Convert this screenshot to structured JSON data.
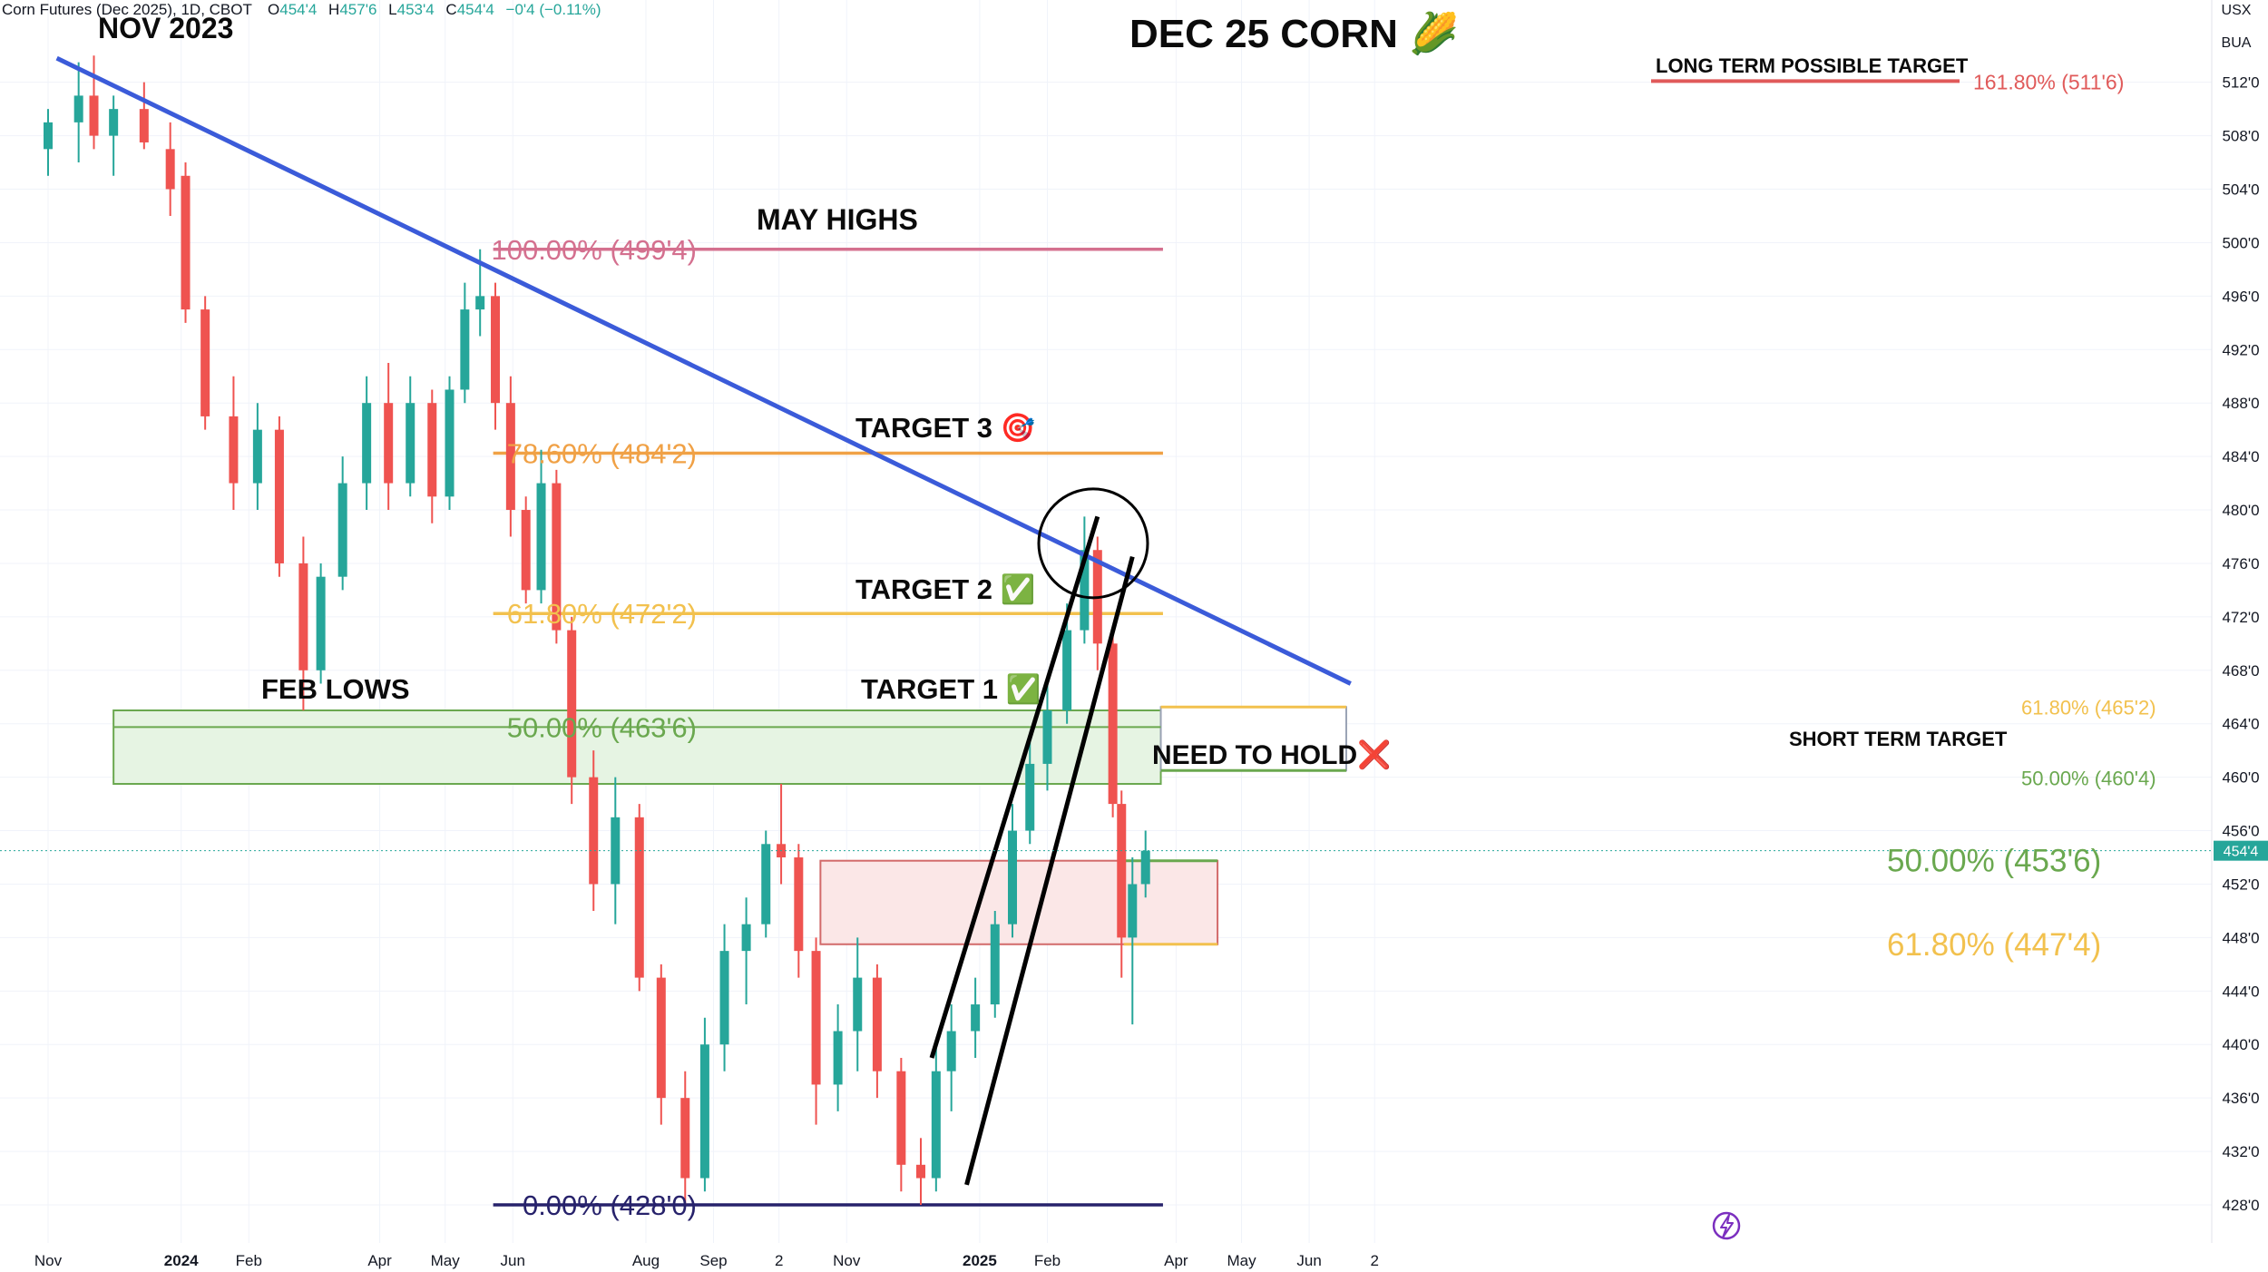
{
  "header": {
    "symbol_info": "Corn Futures (Dec 2025), 1D, CBOT",
    "o_label": "O",
    "o_value": "454'4",
    "h_label": "H",
    "h_value": "457'6",
    "l_label": "L",
    "l_value": "453'4",
    "c_label": "C",
    "c_value": "454'4",
    "change": "−0'4 (−0.11%)"
  },
  "currency": "USX",
  "unit": "BUA",
  "colors": {
    "up": "#26a69a",
    "down": "#ef5350",
    "trendline": "#3b5bd9",
    "fib100": "#d4708f",
    "fib786": "#f0a146",
    "fib618": "#f2c14e",
    "fib50": "#6aa84f",
    "fib0": "#27226b",
    "target_long": "#e05a5a"
  },
  "chart_data": {
    "type": "candlestick",
    "title": "DEC 25 CORN 🌽",
    "price_unit": "cents/bu (eighths notation)",
    "ylim": [
      425,
      518
    ],
    "y_ticks": [
      "512'0",
      "508'0",
      "504'0",
      "500'0",
      "496'0",
      "492'0",
      "488'0",
      "484'0",
      "480'0",
      "476'0",
      "472'0",
      "468'0",
      "464'0",
      "460'0",
      "456'0",
      "452'0",
      "448'0",
      "444'0",
      "440'0",
      "436'0",
      "432'0",
      "428'0"
    ],
    "last_price_label": "454'4",
    "x_ticks": [
      "Nov",
      "2024",
      "Feb",
      "Apr",
      "May",
      "Jun",
      "Aug",
      "Sep",
      "2",
      "Nov",
      "2025",
      "Feb",
      "Apr",
      "May",
      "Jun",
      "2"
    ],
    "bold_x_ticks": [
      "2024",
      "2025"
    ],
    "candles": [
      {
        "date": "2023-11-01",
        "open": 507,
        "high": 510,
        "low": 505,
        "close": 509
      },
      {
        "date": "2023-11-15",
        "open": 509,
        "high": 513.5,
        "low": 506,
        "close": 511
      },
      {
        "date": "2023-11-22",
        "open": 511,
        "high": 514,
        "low": 507,
        "close": 508
      },
      {
        "date": "2023-12-01",
        "open": 508,
        "high": 511,
        "low": 505,
        "close": 510
      },
      {
        "date": "2023-12-15",
        "open": 510,
        "high": 512,
        "low": 507,
        "close": 507.5
      },
      {
        "date": "2023-12-27",
        "open": 507,
        "high": 509,
        "low": 502,
        "close": 504
      },
      {
        "date": "2024-01-03",
        "open": 505,
        "high": 506,
        "low": 494,
        "close": 495
      },
      {
        "date": "2024-01-12",
        "open": 495,
        "high": 496,
        "low": 486,
        "close": 487
      },
      {
        "date": "2024-01-25",
        "open": 487,
        "high": 490,
        "low": 480,
        "close": 482
      },
      {
        "date": "2024-02-05",
        "open": 482,
        "high": 488,
        "low": 480,
        "close": 486
      },
      {
        "date": "2024-02-15",
        "open": 486,
        "high": 487,
        "low": 475,
        "close": 476
      },
      {
        "date": "2024-02-26",
        "open": 476,
        "high": 478,
        "low": 465,
        "close": 468
      },
      {
        "date": "2024-03-05",
        "open": 468,
        "high": 476,
        "low": 467,
        "close": 475
      },
      {
        "date": "2024-03-15",
        "open": 475,
        "high": 484,
        "low": 474,
        "close": 482
      },
      {
        "date": "2024-03-26",
        "open": 482,
        "high": 490,
        "low": 480,
        "close": 488
      },
      {
        "date": "2024-04-05",
        "open": 488,
        "high": 491,
        "low": 480,
        "close": 482
      },
      {
        "date": "2024-04-15",
        "open": 482,
        "high": 490,
        "low": 481,
        "close": 488
      },
      {
        "date": "2024-04-25",
        "open": 488,
        "high": 489,
        "low": 479,
        "close": 481
      },
      {
        "date": "2024-05-03",
        "open": 481,
        "high": 490,
        "low": 480,
        "close": 489
      },
      {
        "date": "2024-05-10",
        "open": 489,
        "high": 497,
        "low": 488,
        "close": 495
      },
      {
        "date": "2024-05-17",
        "open": 495,
        "high": 499.5,
        "low": 493,
        "close": 496
      },
      {
        "date": "2024-05-24",
        "open": 496,
        "high": 497,
        "low": 486,
        "close": 488
      },
      {
        "date": "2024-05-31",
        "open": 488,
        "high": 490,
        "low": 478,
        "close": 480
      },
      {
        "date": "2024-06-07",
        "open": 480,
        "high": 481,
        "low": 473,
        "close": 474
      },
      {
        "date": "2024-06-14",
        "open": 474,
        "high": 484.5,
        "low": 473,
        "close": 482
      },
      {
        "date": "2024-06-21",
        "open": 482,
        "high": 483,
        "low": 470,
        "close": 471
      },
      {
        "date": "2024-06-28",
        "open": 471,
        "high": 472,
        "low": 458,
        "close": 460
      },
      {
        "date": "2024-07-08",
        "open": 460,
        "high": 462,
        "low": 450,
        "close": 452
      },
      {
        "date": "2024-07-18",
        "open": 452,
        "high": 460,
        "low": 449,
        "close": 457
      },
      {
        "date": "2024-07-29",
        "open": 457,
        "high": 458,
        "low": 444,
        "close": 445
      },
      {
        "date": "2024-08-08",
        "open": 445,
        "high": 446,
        "low": 434,
        "close": 436
      },
      {
        "date": "2024-08-19",
        "open": 436,
        "high": 438,
        "low": 428,
        "close": 430
      },
      {
        "date": "2024-08-28",
        "open": 430,
        "high": 442,
        "low": 429,
        "close": 440
      },
      {
        "date": "2024-09-06",
        "open": 440,
        "high": 449,
        "low": 438,
        "close": 447
      },
      {
        "date": "2024-09-16",
        "open": 447,
        "high": 451,
        "low": 443,
        "close": 449
      },
      {
        "date": "2024-09-25",
        "open": 449,
        "high": 456,
        "low": 448,
        "close": 455
      },
      {
        "date": "2024-10-02",
        "open": 455,
        "high": 459.5,
        "low": 452,
        "close": 454
      },
      {
        "date": "2024-10-10",
        "open": 454,
        "high": 455,
        "low": 445,
        "close": 447
      },
      {
        "date": "2024-10-18",
        "open": 447,
        "high": 448,
        "low": 434,
        "close": 437
      },
      {
        "date": "2024-10-28",
        "open": 437,
        "high": 443,
        "low": 435,
        "close": 441
      },
      {
        "date": "2024-11-06",
        "open": 441,
        "high": 448,
        "low": 438,
        "close": 445
      },
      {
        "date": "2024-11-15",
        "open": 445,
        "high": 446,
        "low": 436,
        "close": 438
      },
      {
        "date": "2024-11-26",
        "open": 438,
        "high": 439,
        "low": 429,
        "close": 431
      },
      {
        "date": "2024-12-05",
        "open": 431,
        "high": 433,
        "low": 428,
        "close": 430
      },
      {
        "date": "2024-12-12",
        "open": 430,
        "high": 440,
        "low": 429,
        "close": 438
      },
      {
        "date": "2024-12-19",
        "open": 438,
        "high": 443,
        "low": 435,
        "close": 441
      },
      {
        "date": "2024-12-30",
        "open": 441,
        "high": 445,
        "low": 439,
        "close": 443
      },
      {
        "date": "2025-01-08",
        "open": 443,
        "high": 450,
        "low": 442,
        "close": 449
      },
      {
        "date": "2025-01-16",
        "open": 449,
        "high": 458,
        "low": 448,
        "close": 456
      },
      {
        "date": "2025-01-24",
        "open": 456,
        "high": 463,
        "low": 455,
        "close": 461
      },
      {
        "date": "2025-02-01",
        "open": 461,
        "high": 467,
        "low": 459,
        "close": 465
      },
      {
        "date": "2025-02-10",
        "open": 465,
        "high": 473,
        "low": 464,
        "close": 471
      },
      {
        "date": "2025-02-18",
        "open": 471,
        "high": 479.5,
        "low": 470,
        "close": 477
      },
      {
        "date": "2025-02-24",
        "open": 477,
        "high": 478,
        "low": 468,
        "close": 470
      },
      {
        "date": "2025-03-03",
        "open": 470,
        "high": 471,
        "low": 457,
        "close": 458
      },
      {
        "date": "2025-03-07",
        "open": 458,
        "high": 459,
        "low": 445,
        "close": 448
      },
      {
        "date": "2025-03-12",
        "open": 448,
        "high": 454,
        "low": 441.5,
        "close": 452
      },
      {
        "date": "2025-03-18",
        "open": 452,
        "high": 456,
        "low": 451,
        "close": 454.5
      }
    ],
    "fib_levels": [
      {
        "label": "100.00% (499'4)",
        "price": 499.5,
        "color_key": "fib100"
      },
      {
        "label": "78.60% (484'2)",
        "price": 484.25,
        "color_key": "fib786"
      },
      {
        "label": "61.80% (472'2)",
        "price": 472.25,
        "color_key": "fib618"
      },
      {
        "label": "50.00% (463'6)",
        "price": 463.75,
        "color_key": "fib50"
      },
      {
        "label": "0.00% (428'0)",
        "price": 428.0,
        "color_key": "fib0"
      }
    ],
    "short_term_fibs": [
      {
        "label": "61.80% (465'2)",
        "price": 465.25,
        "color_key": "fib618"
      },
      {
        "label": "50.00% (460'4)",
        "price": 460.5,
        "color_key": "fib50"
      }
    ],
    "support_fibs": [
      {
        "label": "50.00% (453'6)",
        "price": 453.75,
        "color_key": "fib50"
      },
      {
        "label": "61.80% (447'4)",
        "price": 447.5,
        "color_key": "fib618"
      }
    ],
    "long_term_target": {
      "label": "161.80% (511'6)",
      "price": 511.75
    },
    "trendline": {
      "start": {
        "date": "2023-11-05",
        "price": 513.8
      },
      "end": {
        "date": "2025-06-20",
        "price": 467.0
      }
    },
    "channel_lines": [
      {
        "start": {
          "date": "2024-12-10",
          "price": 439
        },
        "end": {
          "date": "2025-02-24",
          "price": 479.5
        }
      },
      {
        "start": {
          "date": "2024-12-26",
          "price": 429.5
        },
        "end": {
          "date": "2025-03-12",
          "price": 476.5
        }
      }
    ],
    "zones": [
      {
        "name": "need-to-hold",
        "from_date": "2023-12-01",
        "to_date": "2025-03-25",
        "low": 459.5,
        "high": 465,
        "fill": "#e6f4e3",
        "stroke": "#6aa84f"
      },
      {
        "name": "red-zone",
        "from_date": "2024-10-20",
        "to_date": "2025-04-20",
        "low": 447.5,
        "high": 453.75,
        "fill": "#fbe7e7",
        "stroke": "#d26a6a"
      },
      {
        "name": "short-term-box",
        "from_date": "2025-03-25",
        "to_date": "2025-06-18",
        "low": 460.5,
        "high": 465.25,
        "fill": "#ffffff",
        "stroke": "#9aa3b5"
      }
    ],
    "circle_highlight": {
      "date": "2025-02-22",
      "price": 477.5
    },
    "annotations": {
      "nov2023": "NOV 2023",
      "may_highs": "MAY HIGHS",
      "target3": "TARGET 3 🎯",
      "target2": "TARGET 2 ✅",
      "target1": "TARGET 1 ✅",
      "feb_lows": "FEB LOWS",
      "need_to_hold": "NEED TO HOLD❌",
      "long_term": "LONG TERM POSSIBLE TARGET",
      "short_term": "SHORT TERM TARGET"
    }
  }
}
